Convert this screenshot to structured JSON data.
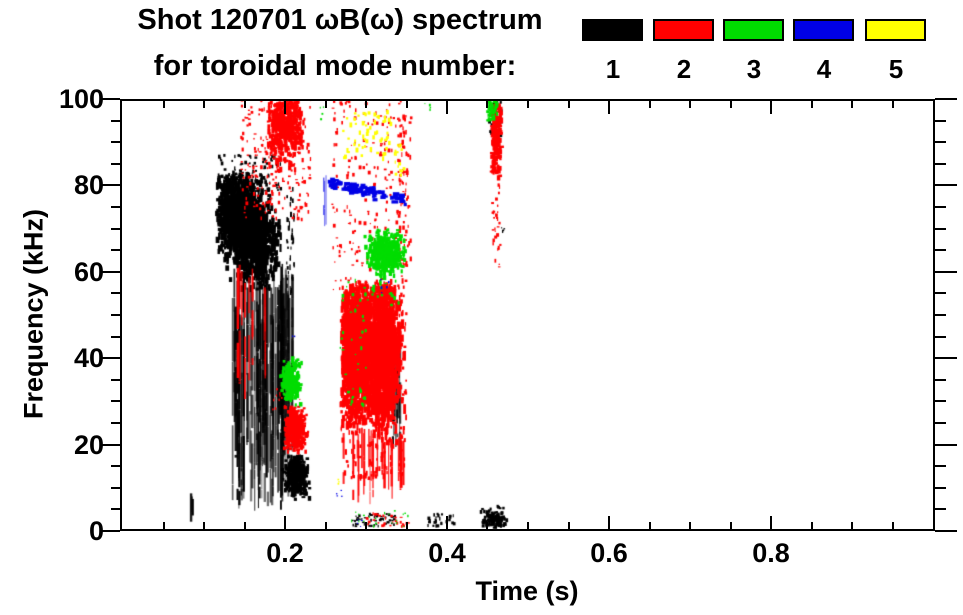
{
  "title": {
    "line1": "Shot 120701 ωB(ω) spectrum",
    "line2": "for toroidal mode number:"
  },
  "legend": {
    "items": [
      {
        "label": "1",
        "color": "#000000"
      },
      {
        "label": "2",
        "color": "#ff0000"
      },
      {
        "label": "3",
        "color": "#00dd00"
      },
      {
        "label": "4",
        "color": "#0000e6"
      },
      {
        "label": "5",
        "color": "#ffff00"
      }
    ]
  },
  "chart_data": {
    "type": "scatter",
    "title": "Shot 120701 ωB(ω) spectrum for toroidal mode number: 1 2 3 4 5",
    "xlabel": "Time (s)",
    "ylabel": "Frequency (kHz)",
    "xlim": [
      0,
      1.0
    ],
    "ylim": [
      0,
      100
    ],
    "xticks": [
      0.2,
      0.4,
      0.6,
      0.8
    ],
    "xtick_labels": [
      "0.2",
      "0.4",
      "0.6",
      "0.8"
    ],
    "x_minor_step": 0.05,
    "yticks": [
      0,
      20,
      40,
      60,
      80,
      100
    ],
    "ytick_labels": [
      "0",
      "20",
      "40",
      "60",
      "80",
      "100"
    ],
    "y_minor_step": 5,
    "grid": false,
    "legend_position": "top-right",
    "modes": {
      "1": "#000000",
      "2": "#ff0000",
      "3": "#00dd00",
      "4": "#0000e6",
      "5": "#ffff00"
    },
    "clusters": [
      {
        "mode": 1,
        "kind": "gauss",
        "ct": 0.143,
        "cf": 73,
        "st": 0.013,
        "sf": 4.5,
        "n": 900,
        "t": [
          0.116,
          0.196
        ],
        "f": [
          57,
          83
        ],
        "w": [
          2,
          4
        ],
        "h": [
          3,
          8
        ],
        "note": "main n=1 mode activity 60-80 kHz, t=0.12-0.20 s"
      },
      {
        "mode": 1,
        "kind": "gauss",
        "ct": 0.164,
        "cf": 66,
        "st": 0.012,
        "sf": 5,
        "n": 700,
        "t": [
          0.118,
          0.198
        ],
        "f": [
          56,
          80
        ],
        "w": [
          2,
          4
        ],
        "h": [
          3,
          8
        ]
      },
      {
        "mode": 1,
        "kind": "uni",
        "t": [
          0.118,
          0.195
        ],
        "f": [
          77,
          87
        ],
        "n": 130,
        "w": [
          1,
          3
        ],
        "h": [
          1,
          4
        ]
      },
      {
        "mode": 1,
        "kind": "vlines",
        "t": [
          0.13,
          0.206
        ],
        "f": [
          4,
          62
        ],
        "n": 85,
        "alpha": [
          0.35,
          1
        ],
        "note": "frequency-sweeping chirps below main blob"
      },
      {
        "mode": 1,
        "kind": "vlines",
        "t": [
          0.196,
          0.213
        ],
        "f": [
          18,
          62
        ],
        "n": 14,
        "alpha": [
          0.3,
          0.8
        ]
      },
      {
        "mode": 1,
        "kind": "gauss",
        "ct": 0.2145,
        "cf": 12.5,
        "st": 0.0065,
        "sf": 2.4,
        "n": 400,
        "t": [
          0.197,
          0.231
        ],
        "f": [
          7,
          18
        ],
        "w": [
          2,
          4
        ],
        "h": [
          2,
          5
        ],
        "note": "low-frequency n=1 blob ~12 kHz at t~0.21 s"
      },
      {
        "mode": 1,
        "kind": "uni",
        "t": [
          0.202,
          0.212
        ],
        "f": [
          55,
          80
        ],
        "n": 40,
        "w": [
          1,
          2
        ],
        "h": [
          2,
          6
        ]
      },
      {
        "mode": 1,
        "kind": "uni",
        "t": [
          0.452,
          0.468
        ],
        "f": [
          91,
          100
        ],
        "n": 38,
        "w": [
          1,
          3
        ],
        "h": [
          2,
          5
        ]
      },
      {
        "mode": 1,
        "kind": "vlines",
        "t": [
          0.084,
          0.089
        ],
        "f": [
          2,
          9
        ],
        "n": 3,
        "alpha": [
          0.8,
          1
        ]
      },
      {
        "mode": 1,
        "kind": "uni",
        "t": [
          0.283,
          0.337
        ],
        "f": [
          1,
          4
        ],
        "n": 50,
        "w": [
          1,
          3
        ],
        "h": [
          1,
          3
        ]
      },
      {
        "mode": 1,
        "kind": "uni",
        "t": [
          0.373,
          0.412
        ],
        "f": [
          1,
          4
        ],
        "n": 26,
        "w": [
          1,
          3
        ],
        "h": [
          2,
          4
        ]
      },
      {
        "mode": 1,
        "kind": "gauss",
        "ct": 0.458,
        "cf": 2.5,
        "st": 0.008,
        "sf": 1.3,
        "n": 120,
        "t": [
          0.442,
          0.474
        ],
        "f": [
          0.5,
          6
        ],
        "w": [
          2,
          3
        ],
        "h": [
          2,
          4
        ]
      },
      {
        "mode": 1,
        "kind": "vlines",
        "t": [
          0.333,
          0.348
        ],
        "f": [
          16,
          45
        ],
        "n": 9,
        "alpha": [
          0.5,
          1
        ]
      },
      {
        "mode": 1,
        "kind": "uni",
        "t": [
          0.466,
          0.471
        ],
        "f": [
          68,
          71
        ],
        "n": 4,
        "w": [
          1,
          2
        ],
        "h": [
          1,
          3
        ]
      },
      {
        "mode": 2,
        "kind": "gauss",
        "ct": 0.2,
        "cf": 94,
        "st": 0.01,
        "sf": 4,
        "n": 450,
        "t": [
          0.178,
          0.223
        ],
        "f": [
          83,
          100
        ],
        "w": [
          2,
          4
        ],
        "h": [
          2,
          6
        ],
        "note": "n=2 cloud 85-100 kHz near t=0.2 s"
      },
      {
        "mode": 2,
        "kind": "uni",
        "t": [
          0.146,
          0.232
        ],
        "f": [
          72,
          100
        ],
        "n": 220,
        "w": [
          1,
          3
        ],
        "h": [
          1,
          4
        ]
      },
      {
        "mode": 2,
        "kind": "gauss",
        "ct": 0.2135,
        "cf": 23.5,
        "st": 0.006,
        "sf": 2.3,
        "n": 360,
        "t": [
          0.199,
          0.229
        ],
        "f": [
          18,
          29
        ],
        "w": [
          2,
          4
        ],
        "h": [
          2,
          5
        ]
      },
      {
        "mode": 2,
        "kind": "gauss",
        "ct": 0.287,
        "cf": 42,
        "st": 0.0085,
        "sf": 7.5,
        "n": 1200,
        "t": [
          0.27,
          0.306
        ],
        "f": [
          22,
          57
        ],
        "w": [
          2,
          4
        ],
        "h": [
          3,
          10
        ],
        "note": "large n=2 mass 25-55 kHz, t=0.27-0.35 s"
      },
      {
        "mode": 2,
        "kind": "gauss",
        "ct": 0.32,
        "cf": 41,
        "st": 0.011,
        "sf": 8,
        "n": 1200,
        "t": [
          0.299,
          0.349
        ],
        "f": [
          20,
          57
        ],
        "w": [
          2,
          4
        ],
        "h": [
          3,
          10
        ]
      },
      {
        "mode": 2,
        "kind": "uni",
        "t": [
          0.268,
          0.35
        ],
        "f": [
          12,
          58
        ],
        "n": 320,
        "w": [
          1,
          3
        ],
        "h": [
          2,
          6
        ]
      },
      {
        "mode": 2,
        "kind": "uni",
        "t": [
          0.258,
          0.352
        ],
        "f": [
          55,
          100
        ],
        "n": 210,
        "w": [
          1,
          3
        ],
        "h": [
          1,
          4
        ]
      },
      {
        "mode": 2,
        "kind": "vlines",
        "t": [
          0.272,
          0.348
        ],
        "f": [
          6,
          24
        ],
        "n": 26,
        "alpha": [
          0.6,
          1
        ]
      },
      {
        "mode": 2,
        "kind": "uni",
        "t": [
          0.3,
          0.36
        ],
        "f": [
          1,
          4
        ],
        "n": 32,
        "w": [
          1,
          3
        ],
        "h": [
          1,
          3
        ]
      },
      {
        "mode": 2,
        "kind": "gauss",
        "ct": 0.461,
        "cf": 92,
        "st": 0.0032,
        "sf": 5,
        "n": 180,
        "t": [
          0.454,
          0.468
        ],
        "f": [
          81,
          100
        ],
        "w": [
          2,
          4
        ],
        "h": [
          2,
          6
        ],
        "note": "n=2 column at t~0.46 s"
      },
      {
        "mode": 2,
        "kind": "uni",
        "t": [
          0.456,
          0.466
        ],
        "f": [
          60,
          82
        ],
        "n": 30,
        "w": [
          1,
          3
        ],
        "h": [
          1,
          4
        ]
      },
      {
        "mode": 2,
        "kind": "uni",
        "t": [
          0.34,
          0.356
        ],
        "f": [
          58,
          96
        ],
        "n": 65,
        "w": [
          1,
          3
        ],
        "h": [
          2,
          5
        ]
      },
      {
        "mode": 2,
        "kind": "vlines",
        "t": [
          0.14,
          0.176
        ],
        "f": [
          30,
          62
        ],
        "n": 10,
        "alpha": [
          0.6,
          1
        ]
      },
      {
        "mode": 2,
        "kind": "uni",
        "t": [
          0.185,
          0.22
        ],
        "f": [
          28,
          33
        ],
        "n": 16,
        "w": [
          1,
          2
        ],
        "h": [
          1,
          3
        ]
      },
      {
        "mode": 3,
        "kind": "gauss",
        "ct": 0.325,
        "cf": 64.5,
        "st": 0.01,
        "sf": 2.3,
        "n": 500,
        "t": [
          0.296,
          0.349
        ],
        "f": [
          58,
          70
        ],
        "w": [
          2,
          4
        ],
        "h": [
          2,
          5
        ],
        "note": "n=3 band ~65 kHz, t=0.30-0.35 s"
      },
      {
        "mode": 3,
        "kind": "gauss",
        "ct": 0.208,
        "cf": 34.5,
        "st": 0.006,
        "sf": 2.3,
        "n": 220,
        "t": [
          0.194,
          0.227
        ],
        "f": [
          29,
          40
        ],
        "w": [
          2,
          4
        ],
        "h": [
          2,
          5
        ],
        "note": "n=3 blob ~34 kHz at t~0.21 s"
      },
      {
        "mode": 3,
        "kind": "uni",
        "t": [
          0.268,
          0.3
        ],
        "f": [
          28,
          58
        ],
        "n": 40,
        "w": [
          1,
          3
        ],
        "h": [
          1,
          4
        ]
      },
      {
        "mode": 3,
        "kind": "uni",
        "t": [
          0.45,
          0.462
        ],
        "f": [
          95,
          100
        ],
        "n": 42,
        "w": [
          2,
          3
        ],
        "h": [
          2,
          5
        ]
      },
      {
        "mode": 3,
        "kind": "uni",
        "t": [
          0.268,
          0.352
        ],
        "f": [
          1,
          5
        ],
        "n": 20,
        "w": [
          1,
          2
        ],
        "h": [
          1,
          3
        ]
      },
      {
        "mode": 3,
        "kind": "uni",
        "t": [
          0.372,
          0.38
        ],
        "f": [
          97,
          100
        ],
        "n": 5,
        "w": [
          1,
          2
        ],
        "h": [
          1,
          3
        ]
      },
      {
        "mode": 3,
        "kind": "uni",
        "t": [
          0.243,
          0.248
        ],
        "f": [
          95,
          99
        ],
        "n": 4,
        "w": [
          1,
          2
        ],
        "h": [
          1,
          3
        ]
      },
      {
        "mode": 3,
        "kind": "uni",
        "t": [
          0.296,
          0.342
        ],
        "f": [
          52,
          58
        ],
        "n": 24,
        "w": [
          1,
          3
        ],
        "h": [
          1,
          4
        ]
      },
      {
        "mode": 4,
        "kind": "hdash",
        "t": [
          0.254,
          0.35
        ],
        "fs": 80.5,
        "fe": 76.5,
        "n": 120,
        "note": "n=4 band drifting 80->77 kHz, t=0.26-0.35 s"
      },
      {
        "mode": 4,
        "kind": "vlines",
        "t": [
          0.247,
          0.252
        ],
        "f": [
          69,
          83
        ],
        "n": 3,
        "alpha": [
          0.4,
          0.7
        ]
      },
      {
        "mode": 4,
        "kind": "uni",
        "t": [
          0.318,
          0.33
        ],
        "f": [
          55,
          59
        ],
        "n": 5,
        "w": [
          1,
          2
        ],
        "h": [
          1,
          3
        ]
      },
      {
        "mode": 4,
        "kind": "uni",
        "t": [
          0.262,
          0.272
        ],
        "f": [
          8,
          10
        ],
        "n": 4,
        "w": [
          1,
          2
        ],
        "h": [
          1,
          2
        ]
      },
      {
        "mode": 4,
        "kind": "uni",
        "t": [
          0.288,
          0.295
        ],
        "f": [
          1,
          3
        ],
        "n": 4,
        "w": [
          1,
          2
        ],
        "h": [
          1,
          2
        ]
      },
      {
        "mode": 4,
        "kind": "uni",
        "t": [
          0.208,
          0.212
        ],
        "f": [
          44,
          46
        ],
        "n": 2,
        "w": [
          1,
          2
        ],
        "h": [
          1,
          2
        ]
      },
      {
        "mode": 5,
        "kind": "uni",
        "t": [
          0.272,
          0.332
        ],
        "f": [
          86,
          97
        ],
        "n": 60,
        "w": [
          2,
          3
        ],
        "h": [
          2,
          5
        ],
        "note": "n=5 speckles 88-96 kHz, t=0.27-0.33 s"
      },
      {
        "mode": 5,
        "kind": "uni",
        "t": [
          0.33,
          0.348
        ],
        "f": [
          82,
          90
        ],
        "n": 16,
        "w": [
          1,
          3
        ],
        "h": [
          2,
          4
        ]
      },
      {
        "mode": 5,
        "kind": "uni",
        "t": [
          0.262,
          0.267
        ],
        "f": [
          10,
          12
        ],
        "n": 3,
        "w": [
          1,
          2
        ],
        "h": [
          1,
          2
        ]
      }
    ]
  }
}
